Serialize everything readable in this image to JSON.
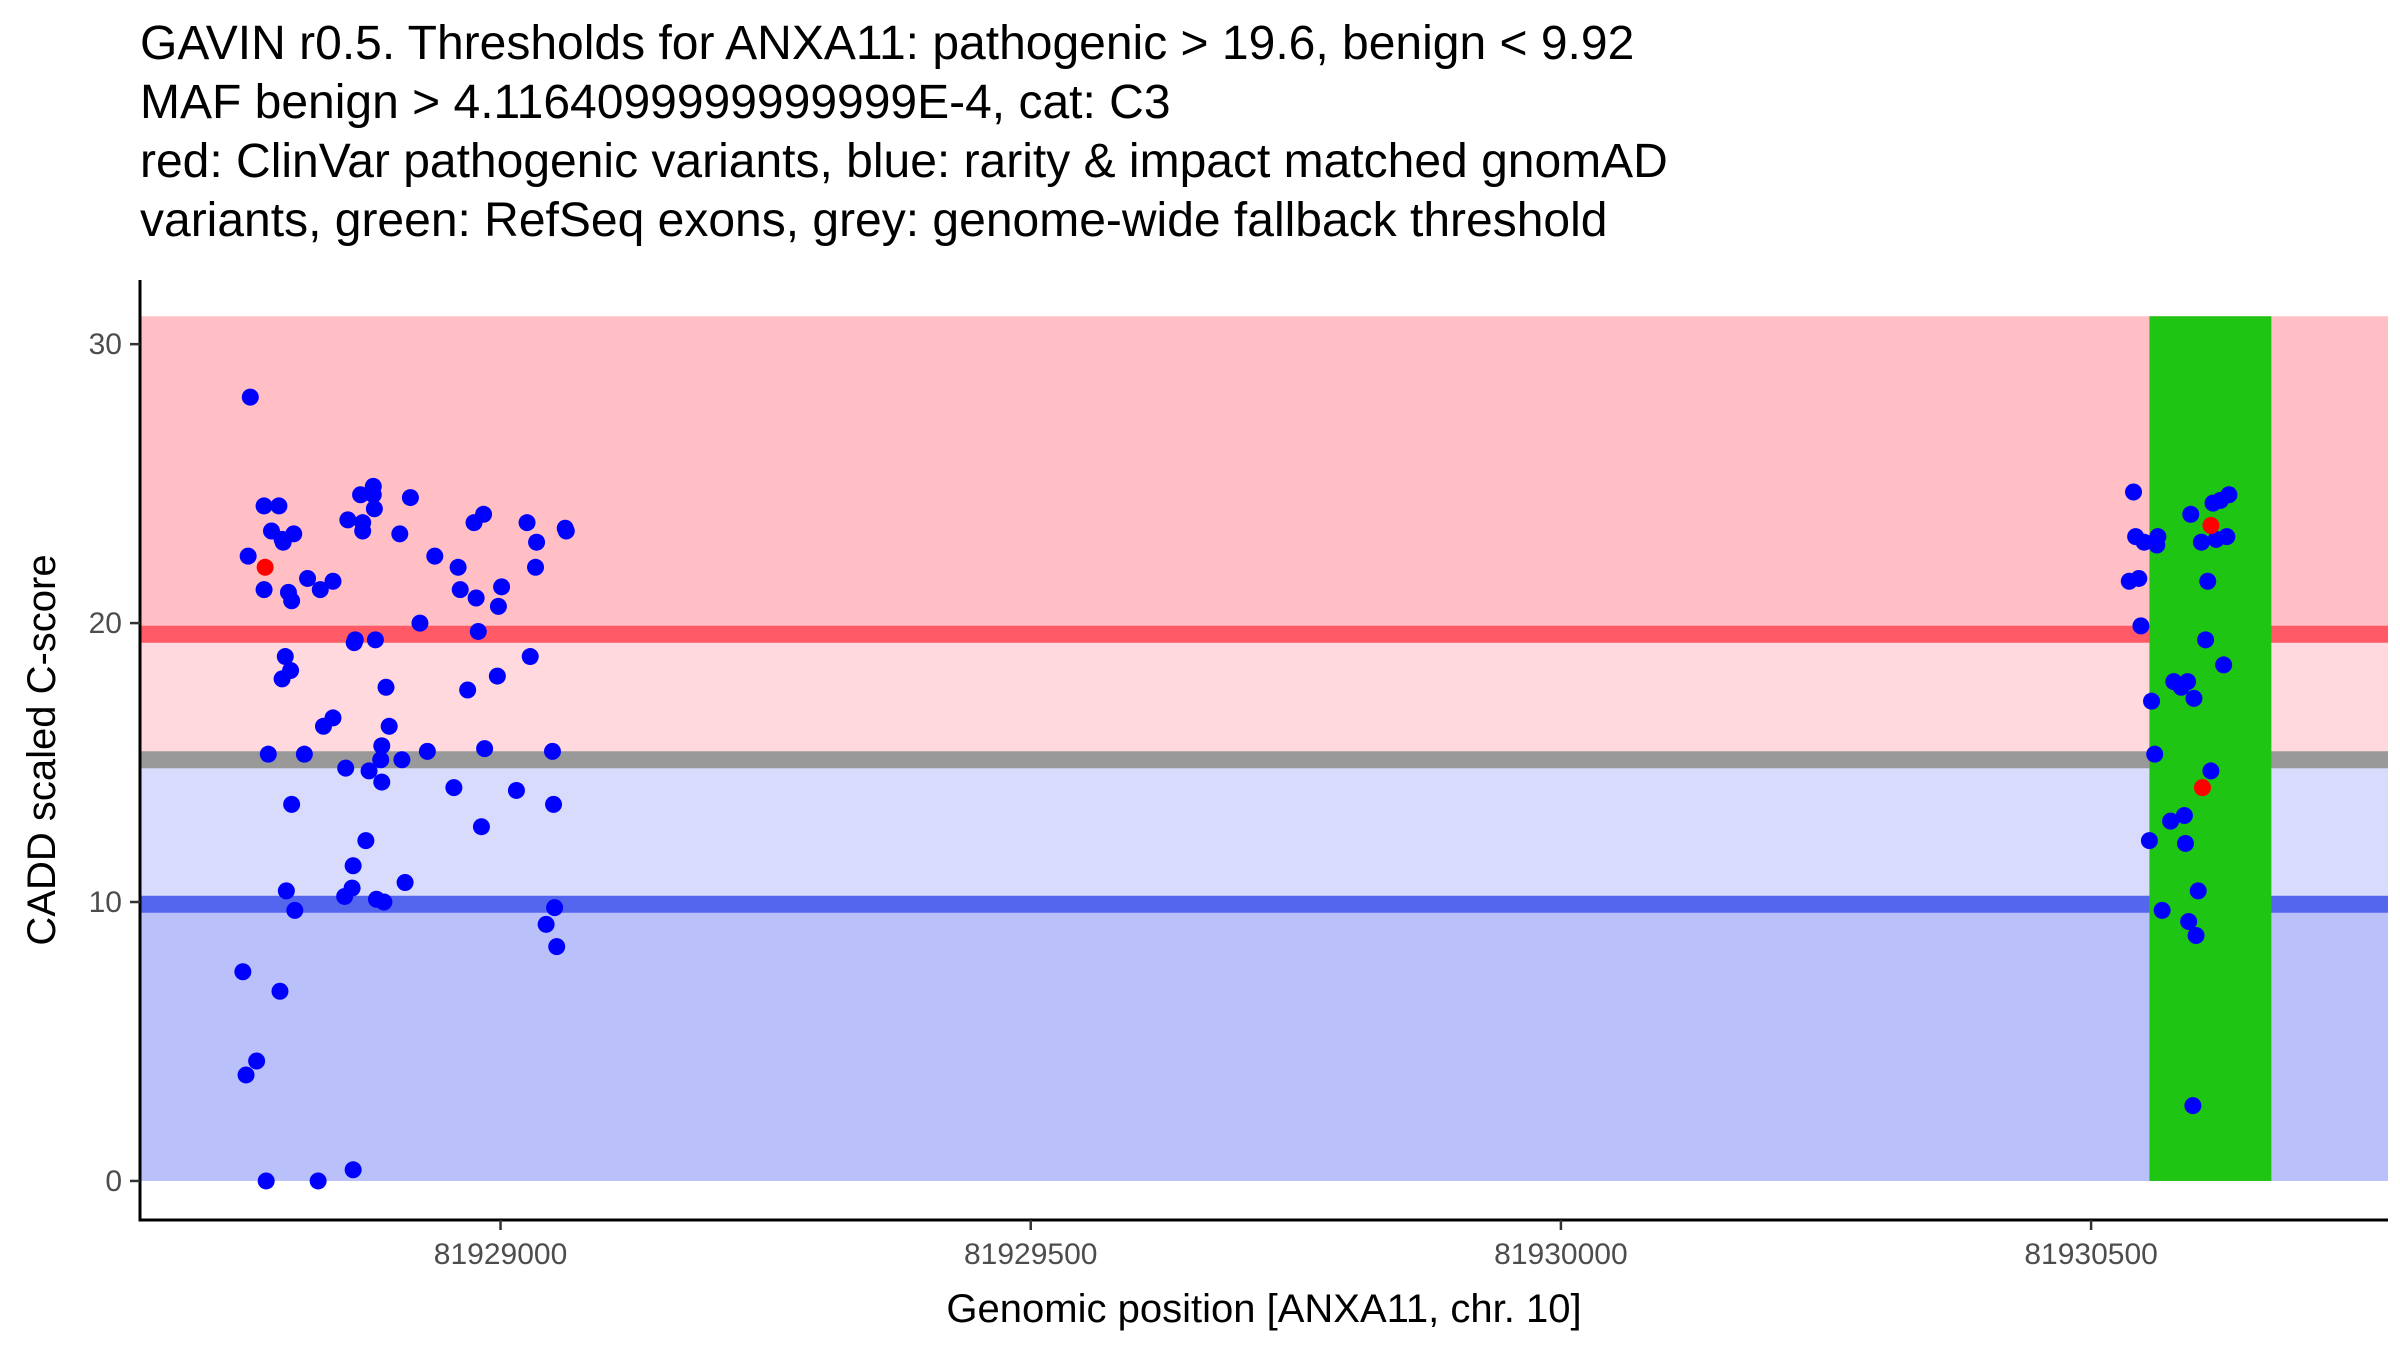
{
  "title": {
    "line1": "GAVIN r0.5. Thresholds for ANXA11: pathogenic > 19.6, benign < 9.92",
    "line2": "MAF benign > 4.1164099999999999E-4, cat: C3",
    "line3": "red: ClinVar pathogenic variants, blue: rarity & impact matched gnomAD",
    "line4": "variants, green: RefSeq exons, grey: genome-wide fallback threshold"
  },
  "chart_data": {
    "type": "scatter",
    "xlabel": "Genomic position [ANXA11, chr. 10]",
    "ylabel": "CADD scaled C-score",
    "xlim": [
      81928660,
      81930780
    ],
    "ylim": [
      -1.4,
      32.3
    ],
    "x_ticks": [
      81929000,
      81929500,
      81930000,
      81930500
    ],
    "x_tick_labels": [
      "81929000",
      "81929500",
      "81930000",
      "81930500"
    ],
    "y_ticks": [
      0,
      10,
      20,
      30
    ],
    "y_tick_labels": [
      "0",
      "10",
      "20",
      "30"
    ],
    "grid": false,
    "colors": {
      "pathogenic_region": "#ffbfc5",
      "grey_zone_upper": "#ffd9de",
      "grey_zone_lower": "#d8dbfc",
      "benign_region": "#bac1fa",
      "pathogenic_threshold_line": "#ff5a65",
      "benign_threshold_line": "#5566ee",
      "fallback_threshold_line": "#999999",
      "exon": "#1ec513",
      "gnomad_point": "#0000ff",
      "clinvar_point": "#ff0000"
    },
    "thresholds": {
      "pathogenic": 19.6,
      "benign": 9.92,
      "genome_wide_fallback": 15.1
    },
    "regions": {
      "x_range": [
        81928660,
        81930780
      ],
      "y_min": 0,
      "y_max": 31
    },
    "exons": [
      {
        "start": 81930555,
        "end": 81930670
      }
    ],
    "series": [
      {
        "name": "ClinVar pathogenic variants",
        "color": "#ff0000",
        "x": [
          81928778,
          81930613,
          81930605
        ],
        "y": [
          22.0,
          23.5,
          14.1
        ]
      },
      {
        "name": "rarity & impact matched gnomAD variants",
        "color": "#0000ff",
        "points": [
          [
            81928757,
            7.5
          ],
          [
            81928760,
            3.8
          ],
          [
            81928762,
            22.4
          ],
          [
            81928764,
            28.1
          ],
          [
            81928770,
            4.3
          ],
          [
            81928777,
            24.2
          ],
          [
            81928777,
            21.2
          ],
          [
            81928779,
            0.0
          ],
          [
            81928781,
            15.3
          ],
          [
            81928784,
            23.3
          ],
          [
            81928791,
            24.2
          ],
          [
            81928792,
            6.8
          ],
          [
            81928794,
            23.0
          ],
          [
            81928794,
            18.0
          ],
          [
            81928795,
            22.9
          ],
          [
            81928797,
            18.8
          ],
          [
            81928798,
            10.4
          ],
          [
            81928800,
            21.1
          ],
          [
            81928802,
            18.3
          ],
          [
            81928803,
            13.5
          ],
          [
            81928803,
            20.8
          ],
          [
            81928805,
            23.2
          ],
          [
            81928806,
            9.7
          ],
          [
            81928815,
            15.3
          ],
          [
            81928818,
            21.6
          ],
          [
            81928828,
            0.0
          ],
          [
            81928830,
            21.2
          ],
          [
            81928833,
            16.3
          ],
          [
            81928842,
            21.5
          ],
          [
            81928842,
            16.6
          ],
          [
            81928853,
            10.2
          ],
          [
            81928854,
            14.8
          ],
          [
            81928856,
            23.7
          ],
          [
            81928860,
            10.5
          ],
          [
            81928861,
            11.3
          ],
          [
            81928861,
            0.4
          ],
          [
            81928862,
            19.3
          ],
          [
            81928863,
            19.4
          ],
          [
            81928868,
            24.6
          ],
          [
            81928870,
            23.3
          ],
          [
            81928870,
            23.6
          ],
          [
            81928873,
            12.2
          ],
          [
            81928876,
            14.7
          ],
          [
            81928880,
            24.9
          ],
          [
            81928880,
            24.6
          ],
          [
            81928881,
            24.1
          ],
          [
            81928882,
            19.4
          ],
          [
            81928883,
            10.1
          ],
          [
            81928887,
            15.1
          ],
          [
            81928888,
            15.6
          ],
          [
            81928888,
            14.3
          ],
          [
            81928890,
            10.0
          ],
          [
            81928892,
            17.7
          ],
          [
            81928895,
            16.3
          ],
          [
            81928905,
            23.2
          ],
          [
            81928907,
            15.1
          ],
          [
            81928910,
            10.7
          ],
          [
            81928915,
            24.5
          ],
          [
            81928924,
            20.0
          ],
          [
            81928931,
            15.4
          ],
          [
            81928938,
            22.4
          ],
          [
            81928956,
            14.1
          ],
          [
            81928960,
            22.0
          ],
          [
            81928962,
            21.2
          ],
          [
            81928969,
            17.6
          ],
          [
            81928975,
            23.6
          ],
          [
            81928977,
            20.9
          ],
          [
            81928979,
            19.7
          ],
          [
            81928982,
            12.7
          ],
          [
            81928984,
            23.9
          ],
          [
            81928985,
            15.5
          ],
          [
            81928997,
            18.1
          ],
          [
            81928998,
            20.6
          ],
          [
            81929001,
            21.3
          ],
          [
            81929015,
            14.0
          ],
          [
            81929025,
            23.6
          ],
          [
            81929028,
            18.8
          ],
          [
            81929033,
            22.0
          ],
          [
            81929034,
            22.9
          ],
          [
            81929043,
            9.2
          ],
          [
            81929049,
            15.4
          ],
          [
            81929050,
            13.5
          ],
          [
            81929051,
            9.8
          ],
          [
            81929053,
            8.4
          ],
          [
            81929061,
            23.4
          ],
          [
            81929062,
            23.3
          ],
          [
            81930536,
            21.5
          ],
          [
            81930540,
            24.7
          ],
          [
            81930542,
            23.1
          ],
          [
            81930545,
            21.6
          ],
          [
            81930547,
            19.9
          ],
          [
            81930550,
            22.9
          ],
          [
            81930555,
            12.2
          ],
          [
            81930557,
            17.2
          ],
          [
            81930560,
            15.3
          ],
          [
            81930562,
            22.8
          ],
          [
            81930563,
            23.1
          ],
          [
            81930567,
            9.7
          ],
          [
            81930575,
            12.9
          ],
          [
            81930578,
            17.9
          ],
          [
            81930585,
            17.7
          ],
          [
            81930588,
            13.1
          ],
          [
            81930589,
            12.1
          ],
          [
            81930591,
            17.9
          ],
          [
            81930592,
            9.3
          ],
          [
            81930594,
            23.9
          ],
          [
            81930596,
            2.7
          ],
          [
            81930597,
            17.3
          ],
          [
            81930599,
            8.8
          ],
          [
            81930601,
            10.4
          ],
          [
            81930604,
            22.9
          ],
          [
            81930608,
            19.4
          ],
          [
            81930610,
            21.5
          ],
          [
            81930613,
            14.7
          ],
          [
            81930615,
            24.3
          ],
          [
            81930618,
            23.0
          ],
          [
            81930622,
            24.4
          ],
          [
            81930625,
            18.5
          ],
          [
            81930628,
            23.1
          ],
          [
            81930630,
            24.6
          ]
        ]
      }
    ]
  }
}
